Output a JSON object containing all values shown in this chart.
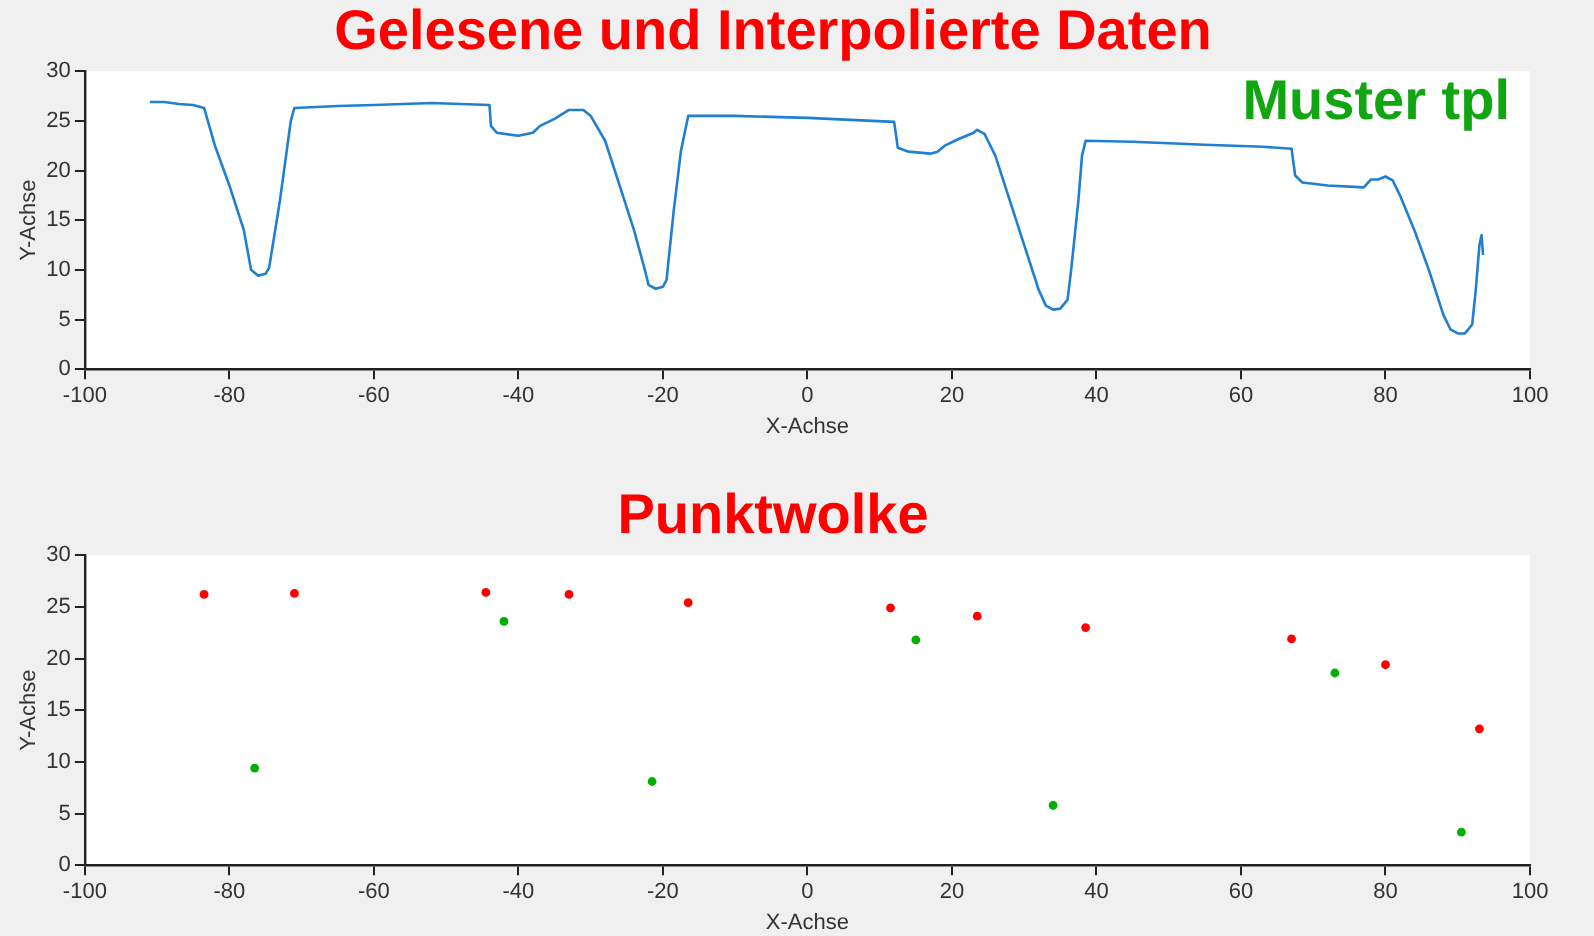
{
  "chart_data": [
    {
      "type": "line",
      "title": "Gelesene und Interpolierte Daten",
      "xlabel": "X-Achse",
      "ylabel": "Y-Achse",
      "annotations": [
        "Muster tpl"
      ],
      "xlim": [
        -100,
        100
      ],
      "xticks": [
        -100,
        -80,
        -60,
        -40,
        -20,
        0,
        20,
        40,
        60,
        80,
        100
      ],
      "ylim": [
        0,
        30
      ],
      "yticks": [
        0,
        5,
        10,
        15,
        20,
        25,
        30
      ],
      "grid": false,
      "legend": false,
      "marker": "none",
      "line_style": "solid",
      "series": [
        {
          "color": "#1f7fd0",
          "x": [
            -91,
            -89,
            -87,
            -85,
            -83.5,
            -82,
            -80,
            -78,
            -77,
            -76,
            -75,
            -74.5,
            -73,
            -71.5,
            -71,
            -65,
            -60,
            -52,
            -44,
            -43.8,
            -43,
            -40,
            -38,
            -37,
            -35,
            -33,
            -31,
            -30,
            -28,
            -26,
            -24,
            -22.5,
            -22,
            -21,
            -20,
            -19.5,
            -18.5,
            -17.5,
            -16.5,
            -10,
            0,
            12,
            12.5,
            14,
            17,
            18,
            19,
            21,
            23,
            23.5,
            24.5,
            26,
            28,
            30,
            32,
            33,
            34,
            35,
            36,
            36.5,
            37.5,
            38,
            38.5,
            45,
            55,
            63,
            67,
            67.5,
            68.5,
            72,
            77,
            78,
            79,
            80,
            81,
            82,
            84,
            86,
            88,
            89,
            90,
            91,
            92,
            92.5,
            93,
            93.3,
            93.5
          ],
          "values": [
            26.9,
            26.9,
            26.7,
            26.6,
            26.3,
            22.5,
            18.5,
            14,
            10,
            9.4,
            9.6,
            10.2,
            17,
            25,
            26.3,
            26.5,
            26.6,
            26.8,
            26.6,
            24.5,
            23.8,
            23.5,
            23.8,
            24.5,
            25.2,
            26.1,
            26.1,
            25.5,
            23,
            18.5,
            14,
            10,
            8.5,
            8.1,
            8.3,
            9,
            16,
            22,
            25.5,
            25.5,
            25.3,
            24.9,
            22.3,
            21.9,
            21.7,
            21.9,
            22.5,
            23.2,
            23.8,
            24.1,
            23.7,
            21.5,
            17,
            12.5,
            8,
            6.4,
            6,
            6.1,
            7,
            10,
            17,
            21.5,
            23,
            22.9,
            22.6,
            22.4,
            22.2,
            19.5,
            18.8,
            18.5,
            18.3,
            19.1,
            19.1,
            19.4,
            19,
            17.5,
            14,
            10,
            5.5,
            4,
            3.6,
            3.6,
            4.5,
            8,
            12.5,
            13.5,
            11.5
          ]
        }
      ]
    },
    {
      "type": "scatter",
      "title": "Punktwolke",
      "xlabel": "X-Achse",
      "ylabel": "Y-Achse",
      "xlim": [
        -100,
        100
      ],
      "xticks": [
        -100,
        -80,
        -60,
        -40,
        -20,
        0,
        20,
        40,
        60,
        80,
        100
      ],
      "ylim": [
        0,
        30
      ],
      "yticks": [
        0,
        5,
        10,
        15,
        20,
        25,
        30
      ],
      "grid": false,
      "legend": false,
      "marker": "circle",
      "series": [
        {
          "color": "#ff0000",
          "x": [
            -83.5,
            -71,
            -44.5,
            -33,
            -16.5,
            11.5,
            23.5,
            38.5,
            67,
            80,
            93
          ],
          "values": [
            26.2,
            26.3,
            26.4,
            26.2,
            25.4,
            24.9,
            24.1,
            23,
            21.9,
            19.4,
            13.2
          ]
        },
        {
          "color": "#00b000",
          "x": [
            -76.5,
            -42,
            -21.5,
            15,
            34,
            73,
            90.5
          ],
          "values": [
            9.4,
            23.6,
            8.1,
            21.8,
            5.8,
            18.6,
            3.2
          ]
        }
      ]
    }
  ]
}
